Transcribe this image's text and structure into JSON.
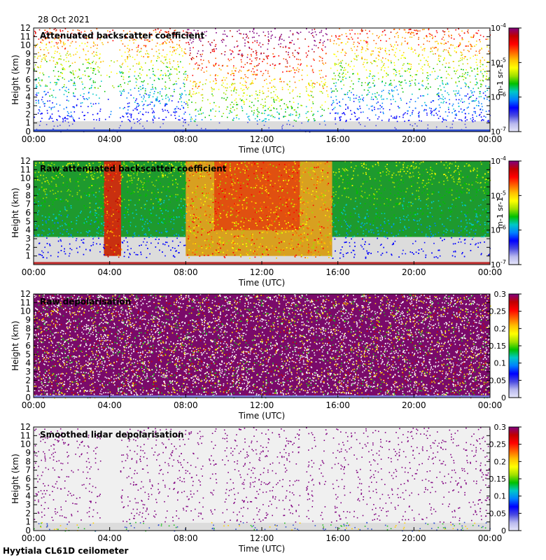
{
  "date": "28 Oct 2021",
  "footer": "Hyytiala CL61D ceilometer",
  "colors": {
    "background_noise": "#dcdcdc",
    "colormap": [
      "#e6e6fa",
      "#b8b8ee",
      "#4a4ae0",
      "#0000ff",
      "#0080ff",
      "#00c8c8",
      "#00c000",
      "#a0e000",
      "#ffff00",
      "#ffc000",
      "#ff6000",
      "#ff0000",
      "#c00000",
      "#800080"
    ]
  },
  "chart_data": [
    {
      "type": "heatmap",
      "title": "Attenuated backscatter coefficient",
      "xlabel": "Time (UTC)",
      "ylabel": "Height (km)",
      "xticks": [
        "00:00",
        "04:00",
        "08:00",
        "12:00",
        "16:00",
        "20:00",
        "00:00"
      ],
      "yticks": [
        "0",
        "1",
        "2",
        "3",
        "4",
        "5",
        "6",
        "7",
        "8",
        "9",
        "10",
        "11",
        "12"
      ],
      "xlim_hours": [
        0,
        24
      ],
      "ylim_km": [
        0,
        12
      ],
      "colorbar": {
        "scale": "log",
        "range": [
          1e-07,
          0.0001
        ],
        "ticks": [
          "10-7",
          "10-6",
          "10-5",
          "10-4"
        ],
        "unit": "m-1 sr-1"
      }
    },
    {
      "type": "heatmap",
      "title": "Raw attenuated backscatter coefficient",
      "xlabel": "Time (UTC)",
      "ylabel": "Height (km)",
      "xticks": [
        "00:00",
        "04:00",
        "08:00",
        "12:00",
        "16:00",
        "20:00",
        "00:00"
      ],
      "yticks": [
        "1",
        "2",
        "3",
        "4",
        "5",
        "6",
        "7",
        "8",
        "9",
        "10",
        "11",
        "12"
      ],
      "xlim_hours": [
        0,
        24
      ],
      "ylim_km": [
        0,
        12
      ],
      "colorbar": {
        "scale": "log",
        "range": [
          1e-07,
          0.0001
        ],
        "ticks": [
          "10-7",
          "10-6",
          "10-5",
          "10-4"
        ],
        "unit": "m-1 sr-1"
      }
    },
    {
      "type": "heatmap",
      "title": "Raw depolarisation",
      "xlabel": "Time (UTC)",
      "ylabel": "Height (km)",
      "xticks": [
        "00:00",
        "04:00",
        "08:00",
        "12:00",
        "16:00",
        "20:00",
        "00:00"
      ],
      "yticks": [
        "0",
        "1",
        "2",
        "3",
        "4",
        "5",
        "6",
        "7",
        "8",
        "9",
        "10",
        "11",
        "12"
      ],
      "xlim_hours": [
        0,
        24
      ],
      "ylim_km": [
        0,
        12
      ],
      "colorbar": {
        "scale": "linear",
        "range": [
          0,
          0.3
        ],
        "ticks": [
          "0",
          "0.05",
          "0.1",
          "0.15",
          "0.2",
          "0.25",
          "0.3"
        ]
      }
    },
    {
      "type": "heatmap",
      "title": "Smoothed lidar depolarisation",
      "xlabel": "Time (UTC)",
      "ylabel": "Height (km)",
      "xticks": [
        "00:00",
        "04:00",
        "08:00",
        "12:00",
        "16:00",
        "20:00",
        "00:00"
      ],
      "yticks": [
        "0",
        "1",
        "2",
        "3",
        "4",
        "5",
        "6",
        "7",
        "8",
        "9",
        "10",
        "11",
        "12"
      ],
      "xlim_hours": [
        0,
        24
      ],
      "ylim_km": [
        0,
        12
      ],
      "colorbar": {
        "scale": "linear",
        "range": [
          0,
          0.3
        ],
        "ticks": [
          "0",
          "0.05",
          "0.1",
          "0.15",
          "0.2",
          "0.25",
          "0.3"
        ]
      }
    }
  ]
}
